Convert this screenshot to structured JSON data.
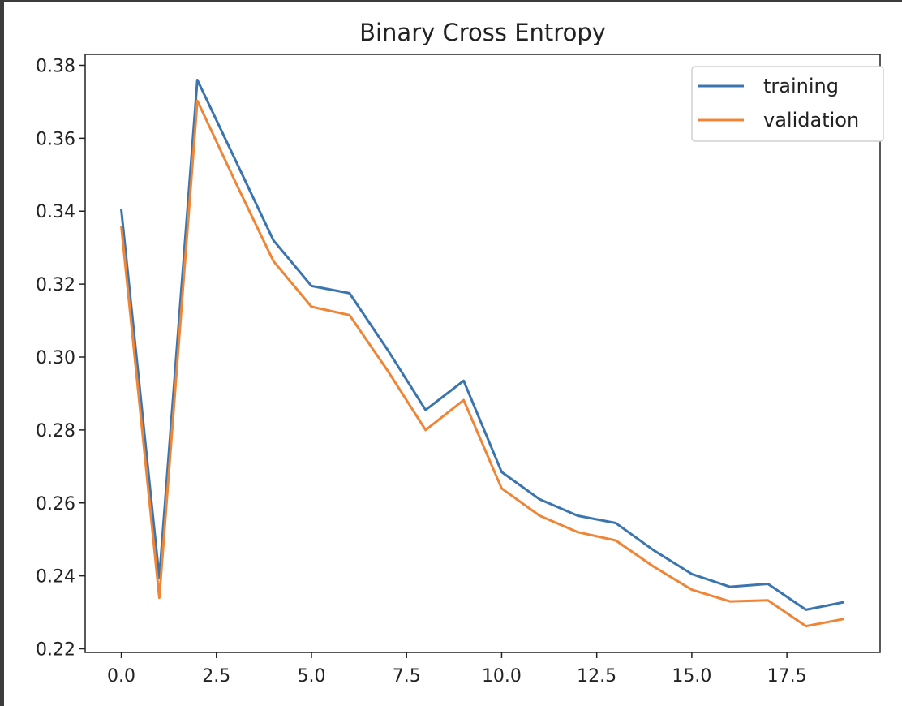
{
  "chart_data": {
    "type": "line",
    "title": "Binary Cross Entropy",
    "xlabel": "",
    "ylabel": "",
    "xlim": [
      -0.95,
      19.95
    ],
    "ylim": [
      0.219,
      0.383
    ],
    "x_ticks": [
      0.0,
      2.5,
      5.0,
      7.5,
      10.0,
      12.5,
      15.0,
      17.5
    ],
    "x_tick_labels": [
      "0.0",
      "2.5",
      "5.0",
      "7.5",
      "10.0",
      "12.5",
      "15.0",
      "17.5"
    ],
    "y_ticks": [
      0.22,
      0.24,
      0.26,
      0.28,
      0.3,
      0.32,
      0.34,
      0.36,
      0.38
    ],
    "y_tick_labels": [
      "0.22",
      "0.24",
      "0.26",
      "0.28",
      "0.30",
      "0.32",
      "0.34",
      "0.36",
      "0.38"
    ],
    "grid": false,
    "legend_position": "top-right",
    "x": [
      0,
      1,
      2,
      3,
      4,
      5,
      6,
      7,
      8,
      9,
      10,
      11,
      12,
      13,
      14,
      15,
      16,
      17,
      18,
      19
    ],
    "series": [
      {
        "name": "training",
        "color": "#3b75af",
        "values": [
          0.3405,
          0.2395,
          0.376,
          0.354,
          0.332,
          0.3195,
          0.3175,
          0.302,
          0.2855,
          0.2935,
          0.2685,
          0.261,
          0.2565,
          0.2545,
          0.247,
          0.2405,
          0.237,
          0.2378,
          0.2307,
          0.2328
        ]
      },
      {
        "name": "validation",
        "color": "#ef8536",
        "values": [
          0.336,
          0.234,
          0.3703,
          0.348,
          0.3263,
          0.3138,
          0.3115,
          0.2963,
          0.28,
          0.2882,
          0.264,
          0.2565,
          0.252,
          0.2497,
          0.2425,
          0.2362,
          0.233,
          0.2333,
          0.2262,
          0.2282
        ]
      }
    ]
  }
}
